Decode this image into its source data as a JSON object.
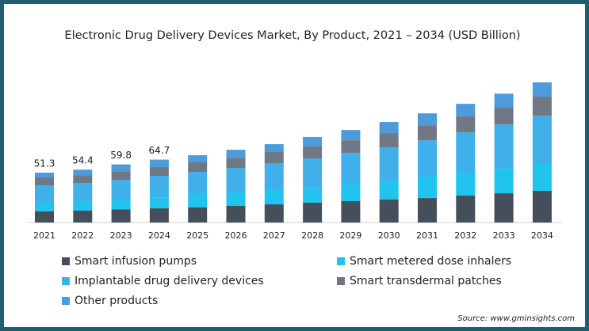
{
  "chart_data": {
    "type": "stacked_bar",
    "title": "Electronic Drug Delivery Devices Market, By Product, 2021 – 2034 (USD Billion)",
    "categories": [
      "2021",
      "2022",
      "2023",
      "2024",
      "2025",
      "2026",
      "2027",
      "2028",
      "2029",
      "2030",
      "2031",
      "2032",
      "2033",
      "2034"
    ],
    "series": [
      {
        "name": "Smart infusion pumps",
        "color": "#454f5c",
        "values": [
          11.4,
          12.2,
          13.5,
          14.6,
          15.5,
          17.1,
          18.7,
          20.4,
          22.0,
          23.6,
          25.2,
          27.7,
          30.1,
          32.6
        ]
      },
      {
        "name": "Smart metered dose inhalers",
        "color": "#20c4ef",
        "values": [
          9.0,
          9.0,
          9.8,
          11.4,
          13.0,
          13.8,
          15.5,
          16.3,
          17.9,
          19.5,
          22.0,
          23.6,
          25.2,
          27.7
        ]
      },
      {
        "name": "Implantable drug delivery devices",
        "color": "#40b0ea",
        "values": [
          17.9,
          19.5,
          20.4,
          22.0,
          23.6,
          25.2,
          26.9,
          29.3,
          31.7,
          34.2,
          37.4,
          41.5,
          45.6,
          49.7
        ]
      },
      {
        "name": "Smart transdermal patches",
        "color": "#707885",
        "values": [
          8.1,
          8.1,
          9.0,
          9.0,
          9.8,
          10.6,
          11.4,
          12.2,
          13.0,
          14.7,
          15.5,
          16.3,
          17.9,
          19.5
        ]
      },
      {
        "name": "Other products",
        "color": "#4e9bdb",
        "values": [
          4.9,
          5.6,
          7.1,
          7.7,
          7.3,
          8.1,
          8.1,
          9.8,
          10.6,
          11.4,
          12.2,
          13.0,
          13.8,
          14.7
        ]
      }
    ],
    "totals": [
      51.3,
      54.4,
      59.8,
      64.7,
      null,
      null,
      null,
      null,
      null,
      null,
      null,
      null,
      null,
      null
    ],
    "source": "Source: www.gminsights.com"
  }
}
